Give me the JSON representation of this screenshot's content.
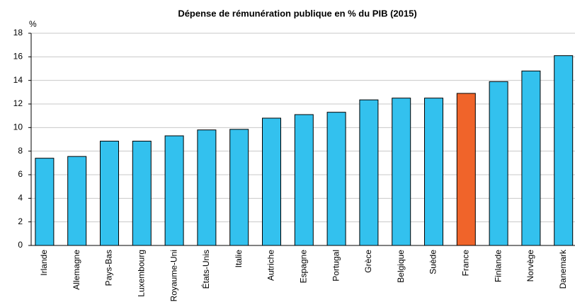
{
  "chart_data": {
    "type": "bar",
    "title": "Dépense de rémunération publique en % du PIB (2015)",
    "y_unit": "%",
    "categories": [
      "Irlande",
      "Allemagne",
      "Pays-Bas",
      "Luxembourg",
      "Royaume-Uni",
      "États-Unis",
      "Italie",
      "Autriche",
      "Espagne",
      "Portugal",
      "Grèce",
      "Belgique",
      "Suède",
      "France",
      "Finlande",
      "Norvège",
      "Danemark"
    ],
    "values": [
      7.4,
      7.55,
      8.85,
      8.85,
      9.3,
      9.8,
      9.85,
      10.8,
      11.1,
      11.3,
      12.35,
      12.5,
      12.5,
      12.9,
      13.9,
      14.8,
      16.1
    ],
    "colors": [
      "#33c1ee",
      "#33c1ee",
      "#33c1ee",
      "#33c1ee",
      "#33c1ee",
      "#33c1ee",
      "#33c1ee",
      "#33c1ee",
      "#33c1ee",
      "#33c1ee",
      "#33c1ee",
      "#33c1ee",
      "#33c1ee",
      "#f0642a",
      "#33c1ee",
      "#33c1ee",
      "#33c1ee"
    ],
    "ylim": [
      0,
      18
    ],
    "yticks": [
      0,
      2,
      4,
      6,
      8,
      10,
      12,
      14,
      16,
      18
    ],
    "grid": true
  }
}
